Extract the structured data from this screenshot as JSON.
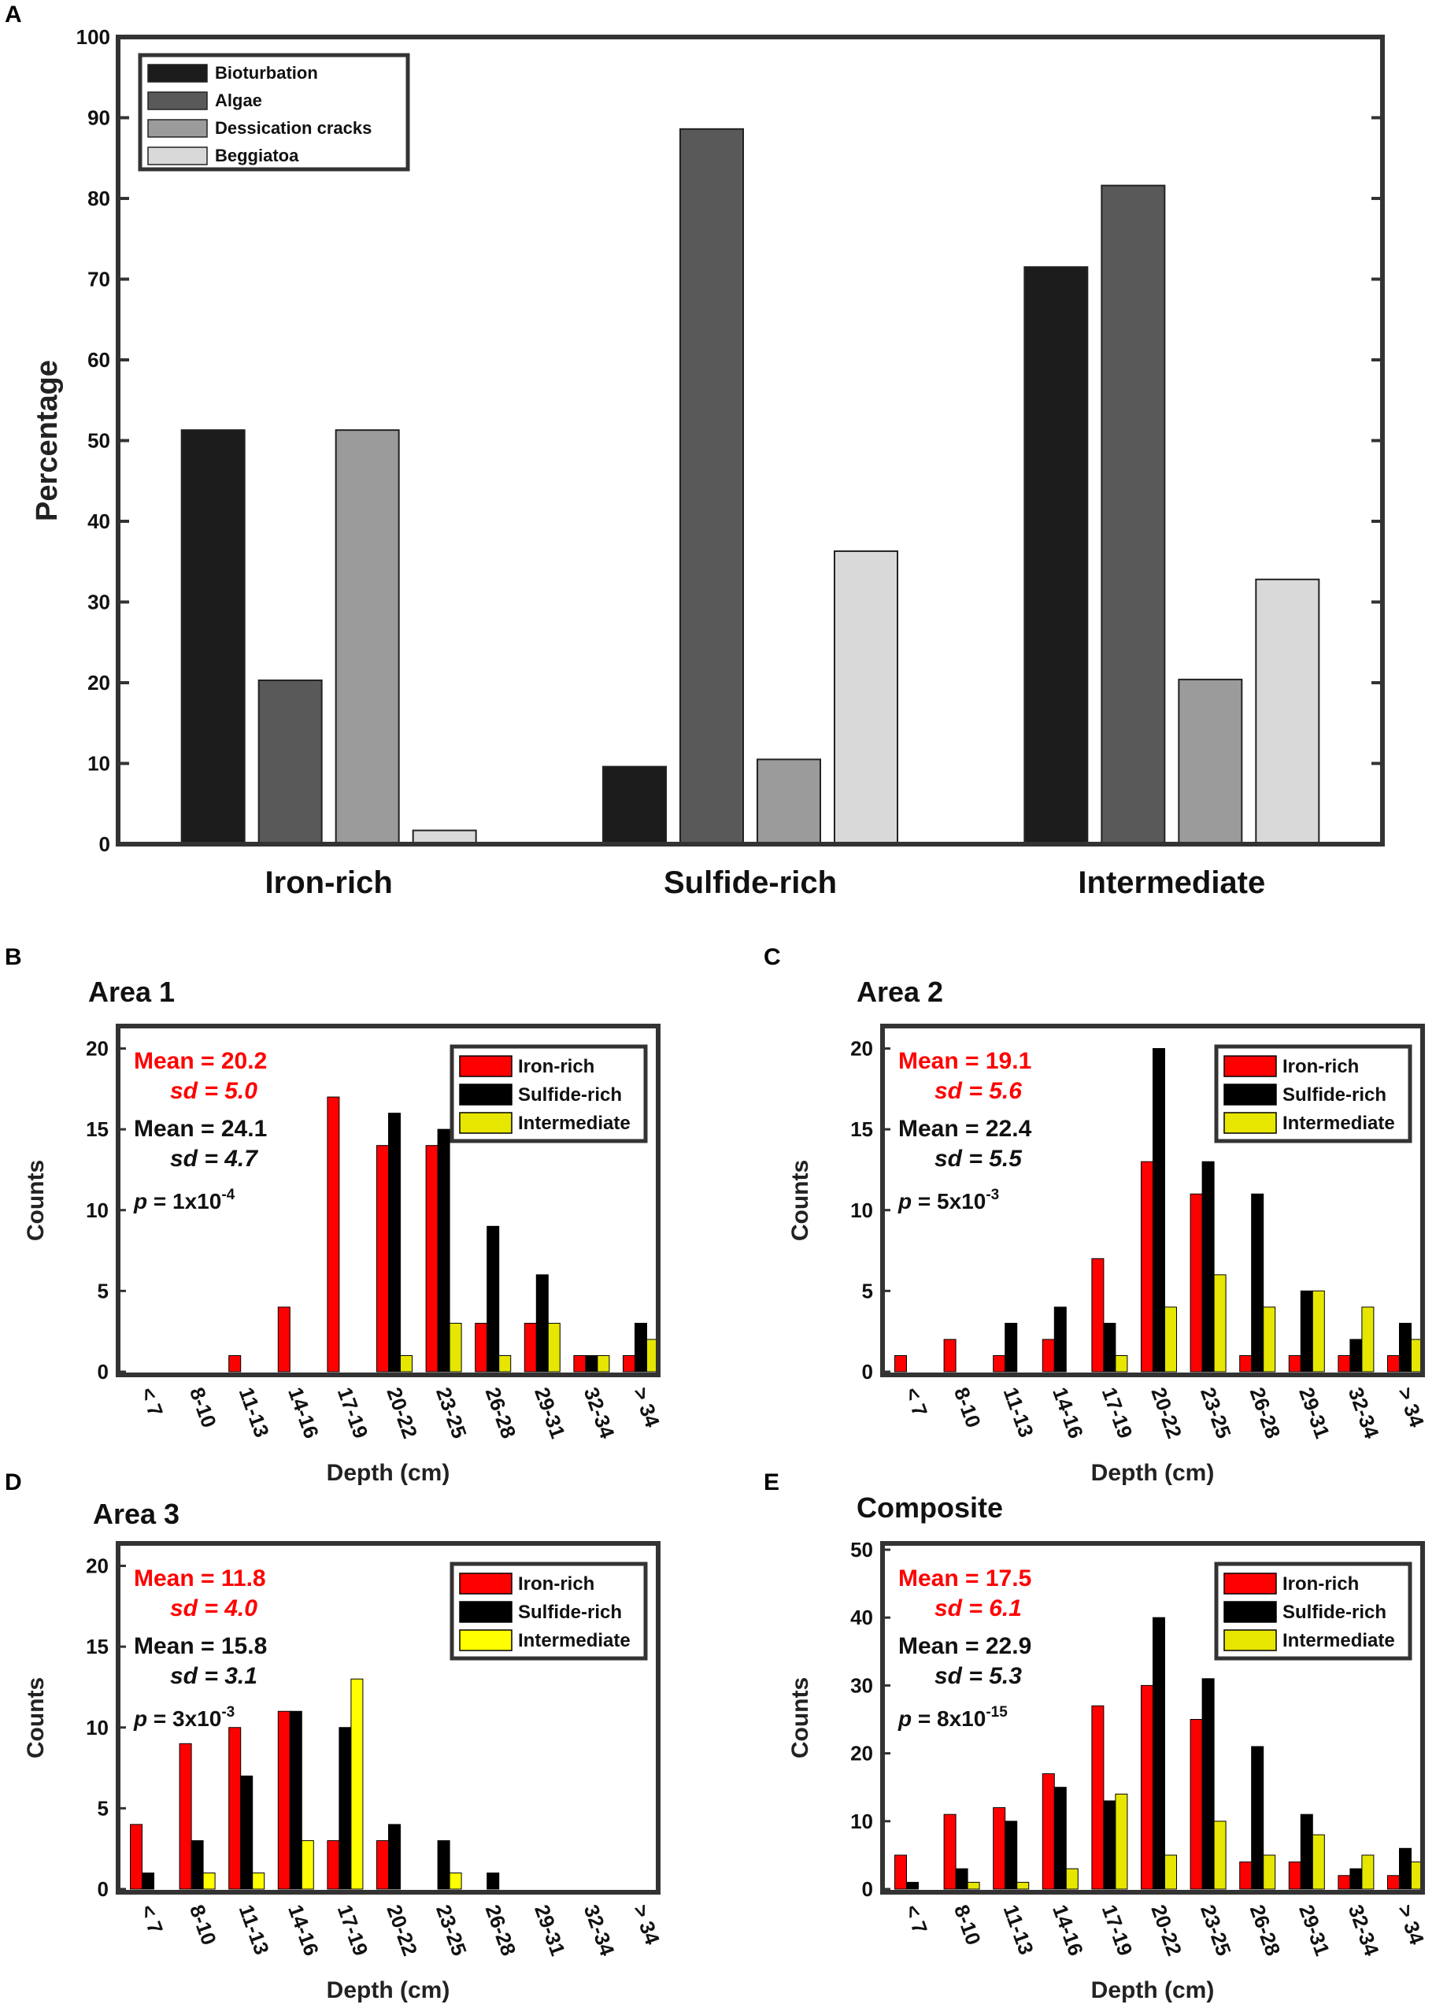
{
  "figure": {
    "colors": {
      "frame": "#333333",
      "iron": "#ff0000",
      "sulfide": "#000000",
      "intermediate": "#e6e600",
      "intermediate_bright": "#ffff00",
      "stat_red": "#ff0000",
      "stat_black": "#111111"
    }
  },
  "chart_data": [
    {
      "id": "A",
      "panel_label": "A",
      "type": "bar",
      "title": "",
      "xlabel": "",
      "ylabel": "Percentage",
      "ylim": [
        0,
        100
      ],
      "yticks": [
        0,
        10,
        20,
        30,
        40,
        50,
        60,
        70,
        80,
        90,
        100
      ],
      "categories": [
        "Iron-rich",
        "Sulfide-rich",
        "Intermediate"
      ],
      "legend_position": "top-left",
      "series": [
        {
          "name": "Bioturbation",
          "color": "#1c1c1c",
          "values": [
            51.3,
            9.6,
            71.5
          ]
        },
        {
          "name": "Algae",
          "color": "#595959",
          "values": [
            20.3,
            88.6,
            81.6
          ]
        },
        {
          "name": "Dessication cracks",
          "color": "#9b9b9b",
          "values": [
            51.3,
            10.5,
            20.4
          ]
        },
        {
          "name": "Beggiatoa",
          "color": "#d9d9d9",
          "values": [
            1.7,
            36.3,
            32.8
          ]
        }
      ]
    },
    {
      "id": "B",
      "panel_label": "B",
      "type": "bar",
      "title": "Area 1",
      "xlabel": "Depth (cm)",
      "ylabel": "Counts",
      "ylim": [
        0,
        21
      ],
      "yticks": [
        0,
        5,
        10,
        15,
        20
      ],
      "categories": [
        "< 7",
        "8-10",
        "11-13",
        "14-16",
        "17-19",
        "20-22",
        "23-25",
        "26-28",
        "29-31",
        "32-34",
        "> 34"
      ],
      "legend_position": "top-right",
      "series": [
        {
          "name": "Iron-rich",
          "color": "#ff0000",
          "values": [
            0,
            0,
            1,
            4,
            17,
            14,
            14,
            3,
            3,
            1,
            1
          ]
        },
        {
          "name": "Sulfide-rich",
          "color": "#000000",
          "values": [
            0,
            0,
            0,
            0,
            0,
            16,
            15,
            9,
            6,
            1,
            3
          ]
        },
        {
          "name": "Intermediate",
          "color": "#e6e600",
          "values": [
            0,
            0,
            0,
            0,
            0,
            1,
            3,
            1,
            3,
            1,
            2
          ]
        }
      ],
      "stats": {
        "iron_mean": "Mean = 20.2",
        "iron_sd": "sd = 5.0",
        "sulfide_mean": "Mean = 24.1",
        "sulfide_sd": "sd = 4.7",
        "p_label": "p",
        "p_value": " = 1x10",
        "p_exp": "-4"
      }
    },
    {
      "id": "C",
      "panel_label": "C",
      "type": "bar",
      "title": "Area 2",
      "xlabel": "Depth (cm)",
      "ylabel": "Counts",
      "ylim": [
        0,
        21
      ],
      "yticks": [
        0,
        5,
        10,
        15,
        20
      ],
      "categories": [
        "< 7",
        "8-10",
        "11-13",
        "14-16",
        "17-19",
        "20-22",
        "23-25",
        "26-28",
        "29-31",
        "32-34",
        "> 34"
      ],
      "legend_position": "top-right",
      "series": [
        {
          "name": "Iron-rich",
          "color": "#ff0000",
          "values": [
            1,
            2,
            1,
            2,
            7,
            13,
            11,
            1,
            1,
            1,
            1
          ]
        },
        {
          "name": "Sulfide-rich",
          "color": "#000000",
          "values": [
            0,
            0,
            3,
            4,
            3,
            20,
            13,
            11,
            5,
            2,
            3
          ]
        },
        {
          "name": "Intermediate",
          "color": "#e6e600",
          "values": [
            0,
            0,
            0,
            0,
            1,
            4,
            6,
            4,
            5,
            4,
            2
          ]
        }
      ],
      "stats": {
        "iron_mean": "Mean = 19.1",
        "iron_sd": "sd = 5.6",
        "sulfide_mean": "Mean = 22.4",
        "sulfide_sd": "sd = 5.5",
        "p_label": "p",
        "p_value": " = 5x10",
        "p_exp": "-3"
      }
    },
    {
      "id": "D",
      "panel_label": "D",
      "type": "bar",
      "title": "Area 3",
      "xlabel": "Depth (cm)",
      "ylabel": "Counts",
      "ylim": [
        0,
        21
      ],
      "yticks": [
        0,
        5,
        10,
        15,
        20
      ],
      "categories": [
        "< 7",
        "8-10",
        "11-13",
        "14-16",
        "17-19",
        "20-22",
        "23-25",
        "26-28",
        "29-31",
        "32-34",
        "> 34"
      ],
      "legend_position": "top-right",
      "series": [
        {
          "name": "Iron-rich",
          "color": "#ff0000",
          "values": [
            4,
            9,
            10,
            11,
            3,
            3,
            0,
            0,
            0,
            0,
            0
          ]
        },
        {
          "name": "Sulfide-rich",
          "color": "#000000",
          "values": [
            1,
            3,
            7,
            11,
            10,
            4,
            3,
            1,
            0,
            0,
            0
          ]
        },
        {
          "name": "Intermediate",
          "color": "#ffff00",
          "values": [
            0,
            1,
            1,
            3,
            13,
            0,
            1,
            0,
            0,
            0,
            0
          ]
        }
      ],
      "stats": {
        "iron_mean": "Mean = 11.8",
        "iron_sd": "sd = 4.0",
        "sulfide_mean": "Mean = 15.8",
        "sulfide_sd": "sd = 3.1",
        "p_label": "p",
        "p_value": " = 3x10",
        "p_exp": "-3"
      }
    },
    {
      "id": "E",
      "panel_label": "E",
      "type": "bar",
      "title": "Composite",
      "xlabel": "Depth (cm)",
      "ylabel": "Counts",
      "ylim": [
        0,
        50
      ],
      "yticks": [
        0,
        10,
        20,
        30,
        40,
        50
      ],
      "categories": [
        "< 7",
        "8-10",
        "11-13",
        "14-16",
        "17-19",
        "20-22",
        "23-25",
        "26-28",
        "29-31",
        "32-34",
        "> 34"
      ],
      "legend_position": "top-right",
      "series": [
        {
          "name": "Iron-rich",
          "color": "#ff0000",
          "values": [
            5,
            11,
            12,
            17,
            27,
            30,
            25,
            4,
            4,
            2,
            2
          ]
        },
        {
          "name": "Sulfide-rich",
          "color": "#000000",
          "values": [
            1,
            3,
            10,
            15,
            13,
            40,
            31,
            21,
            11,
            3,
            6
          ]
        },
        {
          "name": "Intermediate",
          "color": "#e6e600",
          "values": [
            0,
            1,
            1,
            3,
            14,
            5,
            10,
            5,
            8,
            5,
            4
          ]
        }
      ],
      "stats": {
        "iron_mean": "Mean = 17.5",
        "iron_sd": "sd = 6.1",
        "sulfide_mean": "Mean = 22.9",
        "sulfide_sd": "sd = 5.3",
        "p_label": "p",
        "p_value": " = 8x10",
        "p_exp": "-15"
      }
    }
  ]
}
